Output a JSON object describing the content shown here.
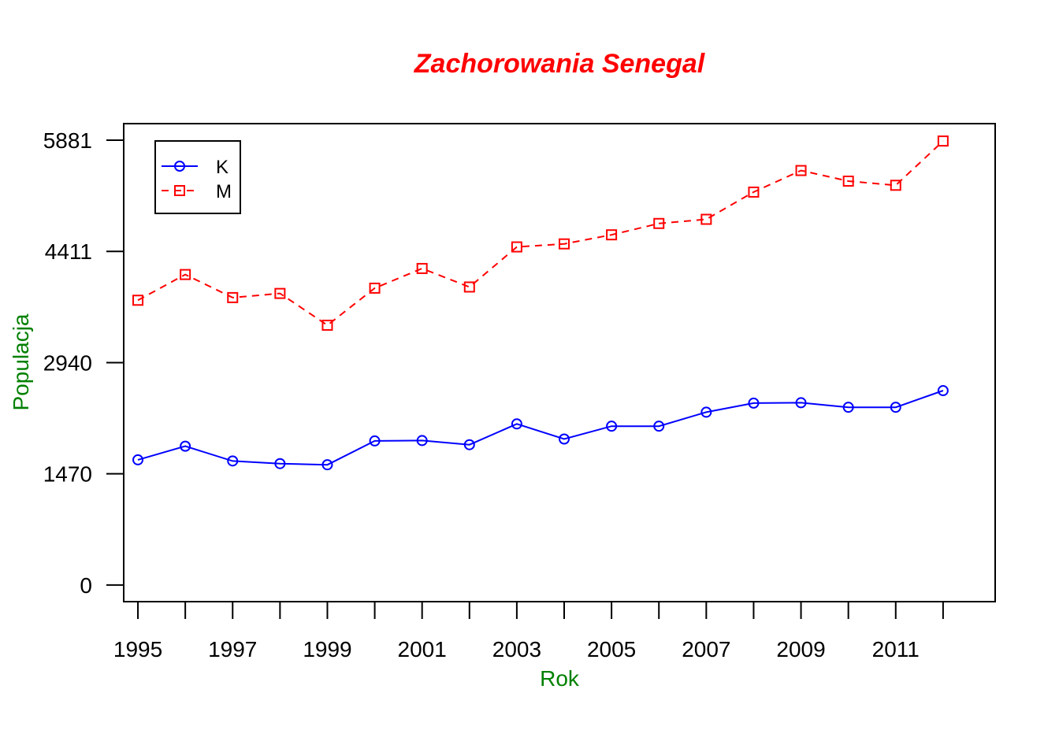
{
  "chart_data": {
    "type": "line",
    "title": "Zachorowania Senegal",
    "xlabel": "Rok",
    "ylabel": "Populacja",
    "x": [
      1995,
      1996,
      1997,
      1998,
      1999,
      2000,
      2001,
      2002,
      2003,
      2004,
      2005,
      2006,
      2007,
      2008,
      2009,
      2010,
      2011,
      2012
    ],
    "x_tick_labels": [
      "1995",
      "1997",
      "1999",
      "2001",
      "2003",
      "2005",
      "2007",
      "2009",
      "2011"
    ],
    "y_tick_labels": [
      "0",
      "1470",
      "2940",
      "4411",
      "5881"
    ],
    "xlim": [
      1994.7,
      2013.1
    ],
    "ylim": [
      -220,
      6100
    ],
    "series": [
      {
        "name": "K",
        "color": "#0000ff",
        "marker": "circle",
        "line_style": "solid",
        "values": [
          1655,
          1835,
          1640,
          1605,
          1590,
          1905,
          1910,
          1855,
          2130,
          1930,
          2100,
          2100,
          2285,
          2405,
          2410,
          2350,
          2350,
          2570
        ]
      },
      {
        "name": "M",
        "color": "#ff0000",
        "marker": "square",
        "line_style": "dashed",
        "values": [
          3765,
          4105,
          3800,
          3855,
          3435,
          3925,
          4185,
          3940,
          4470,
          4510,
          4630,
          4780,
          4835,
          5195,
          5480,
          5340,
          5285,
          5870
        ]
      }
    ],
    "legend_position": "top-left",
    "grid": false,
    "colors": {
      "title": "#ff0000",
      "axis_labels": "#008000"
    }
  }
}
